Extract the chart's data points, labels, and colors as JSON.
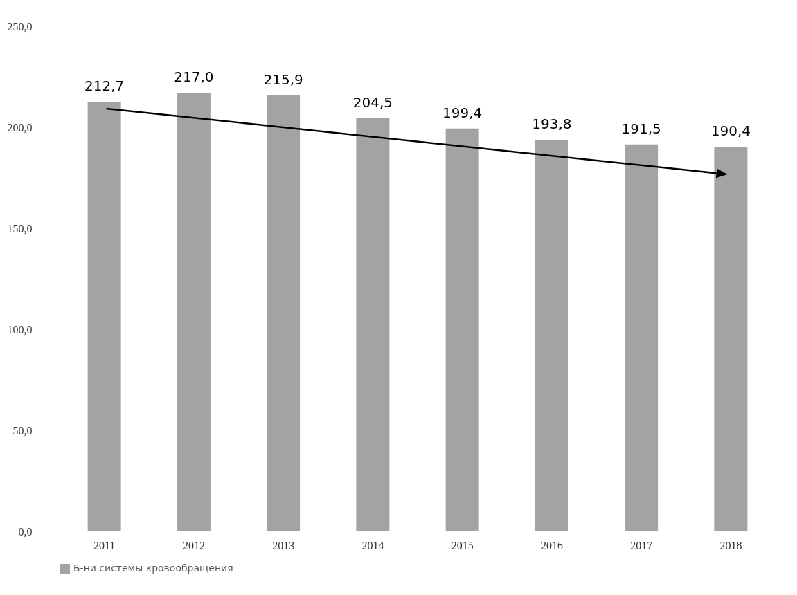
{
  "chart_data": {
    "type": "bar",
    "categories": [
      "2011",
      "2012",
      "2013",
      "2014",
      "2015",
      "2016",
      "2017",
      "2018"
    ],
    "series": [
      {
        "name": "Б-ни системы кровообращения",
        "color": "#a3a3a3",
        "values": [
          212.7,
          217.0,
          215.9,
          204.5,
          199.4,
          193.8,
          191.5,
          190.4
        ]
      }
    ],
    "value_labels": [
      "212,7",
      "217,0",
      "215,9",
      "204,5",
      "199,4",
      "193,8",
      "191,5",
      "190,4"
    ],
    "ylim": [
      0,
      250
    ],
    "yticks": [
      {
        "value": 0,
        "label": "0,0"
      },
      {
        "value": 50,
        "label": "50,0"
      },
      {
        "value": 100,
        "label": "100,0"
      },
      {
        "value": 150,
        "label": "150,0"
      },
      {
        "value": 200,
        "label": "200,0"
      },
      {
        "value": 250,
        "label": "250,0"
      }
    ],
    "grid": false,
    "legend": "bottom"
  }
}
